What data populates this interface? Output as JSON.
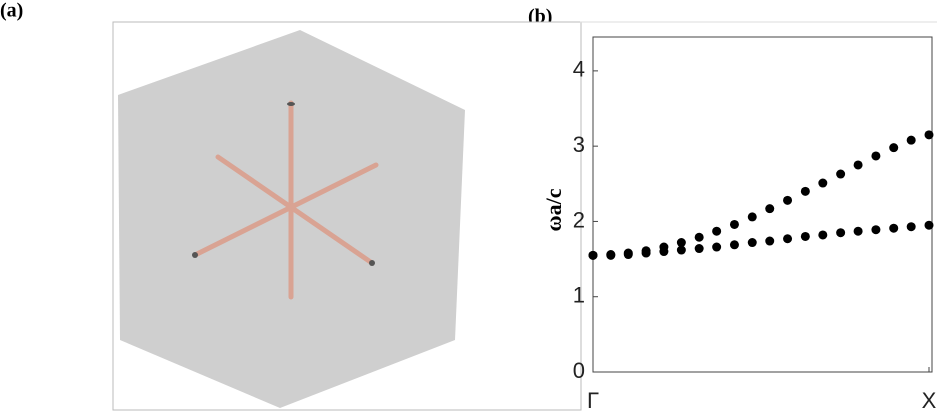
{
  "figure_labels": [
    "(a)",
    "(b)"
  ],
  "chart_data": {
    "type": "scatter",
    "ylabel": "ωa/c",
    "x": [
      0,
      0.053,
      0.105,
      0.158,
      0.211,
      0.263,
      0.316,
      0.368,
      0.421,
      0.474,
      0.526,
      0.579,
      0.632,
      0.684,
      0.737,
      0.789,
      0.842,
      0.895,
      0.947,
      1
    ],
    "series": [
      {
        "color": "#000000",
        "values": [
          1.55,
          1.55,
          1.56,
          1.58,
          1.6,
          1.62,
          1.64,
          1.66,
          1.69,
          1.72,
          1.74,
          1.77,
          1.8,
          1.82,
          1.85,
          1.87,
          1.89,
          1.91,
          1.93,
          1.95
        ]
      },
      {
        "color": "#000000",
        "values": [
          1.55,
          1.56,
          1.58,
          1.61,
          1.66,
          1.72,
          1.79,
          1.87,
          1.96,
          2.06,
          2.17,
          2.28,
          2.4,
          2.51,
          2.63,
          2.75,
          2.87,
          2.98,
          3.08,
          3.15
        ]
      }
    ],
    "xlim": [
      0,
      1
    ],
    "xticks": [
      {
        "value": 0,
        "label": "Γ"
      },
      {
        "value": 1,
        "label": "X"
      }
    ],
    "ylim": [
      0,
      4.45
    ],
    "yticks": [
      0,
      1,
      2,
      3,
      4
    ],
    "grid": false
  }
}
